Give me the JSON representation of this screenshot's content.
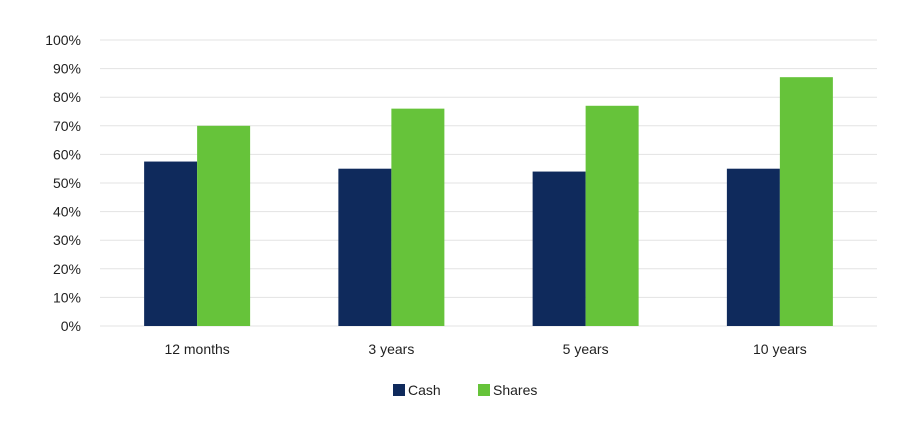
{
  "chart_data": {
    "type": "bar",
    "title": "",
    "xlabel": "",
    "ylabel": "",
    "ylim": [
      0,
      100
    ],
    "yticks": [
      0,
      10,
      20,
      30,
      40,
      50,
      60,
      70,
      80,
      90,
      100
    ],
    "ytick_suffix": "%",
    "grid": true,
    "legend_position": "bottom",
    "categories": [
      "12 months",
      "3 years",
      "5 years",
      "10 years"
    ],
    "series": [
      {
        "name": "Cash",
        "color": "#0f2a5c",
        "values": [
          57.5,
          55,
          54,
          55
        ]
      },
      {
        "name": "Shares",
        "color": "#66c33a",
        "values": [
          70,
          76,
          77,
          87
        ]
      }
    ]
  }
}
